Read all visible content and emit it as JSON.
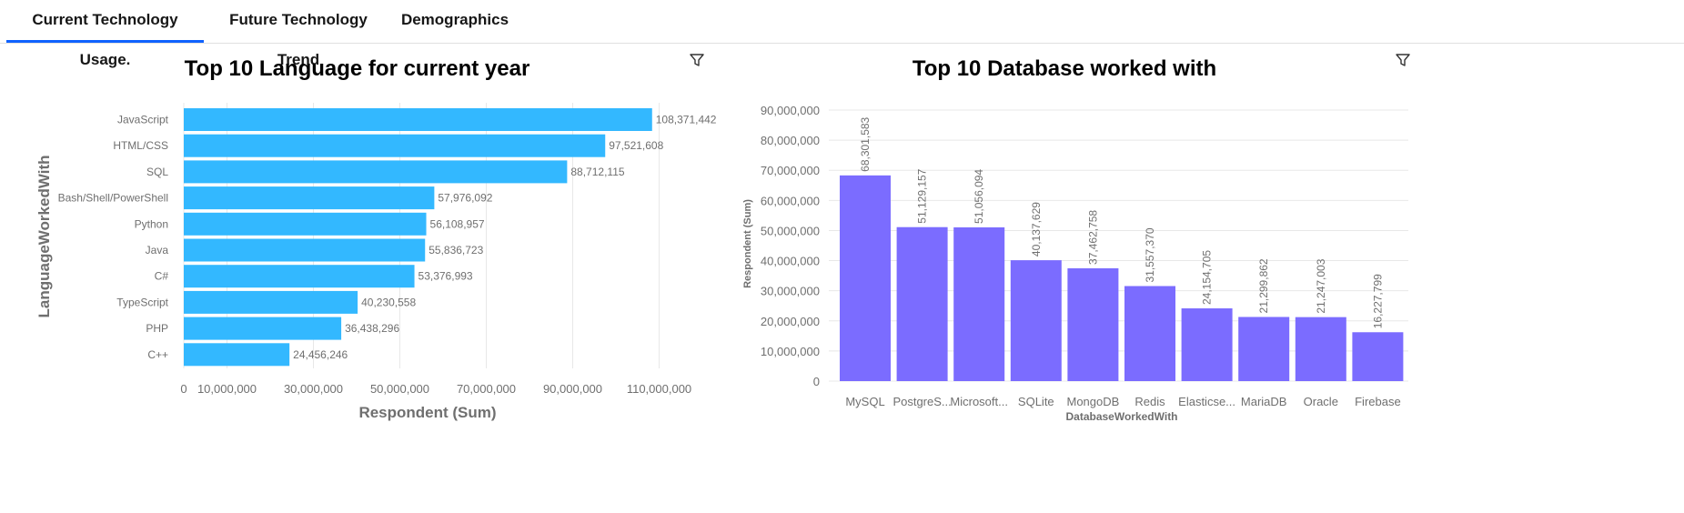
{
  "tabs": [
    {
      "label": "Current Technology Usage.",
      "active": true
    },
    {
      "label": "Future Technology Trend",
      "active": false
    },
    {
      "label": "Demographics",
      "active": false
    }
  ],
  "colors": {
    "accent": "#0f62fe",
    "lang_bar": "#33b8ff",
    "db_bar": "#7b6cff",
    "grid": "#e8e8e8",
    "tick_text": "#6f6f6f"
  },
  "icons": {
    "filter": "filter-icon"
  },
  "chart_data": [
    {
      "type": "bar",
      "orientation": "horizontal",
      "title": "Top 10 Language for current year",
      "xlabel": "Respondent (Sum)",
      "ylabel": "LanguageWorkedWith",
      "categories": [
        "JavaScript",
        "HTML/CSS",
        "SQL",
        "Bash/Shell/PowerShell",
        "Python",
        "Java",
        "C#",
        "TypeScript",
        "PHP",
        "C++"
      ],
      "values": [
        108371442,
        97521608,
        88712115,
        57976092,
        56108957,
        55836723,
        53376993,
        40230558,
        36438296,
        24456246
      ],
      "value_labels": [
        "108,371,442",
        "97,521,608",
        "88,712,115",
        "57,976,092",
        "56,108,957",
        "55,836,723",
        "53,376,993",
        "40,230,558",
        "36,438,296",
        "24,456,246"
      ],
      "xticks": [
        0,
        10000000,
        30000000,
        50000000,
        70000000,
        90000000,
        110000000
      ],
      "xtick_labels": [
        "0",
        "10,000,000",
        "30,000,000",
        "50,000,000",
        "70,000,000",
        "90,000,000",
        "110,000,000"
      ],
      "xlim": [
        0,
        120000000
      ],
      "grid": true
    },
    {
      "type": "bar",
      "orientation": "vertical",
      "title": "Top 10 Database worked with",
      "xlabel": "DatabaseWorkedWith",
      "ylabel": "Respondent (Sum)",
      "categories": [
        "MySQL",
        "PostgreS...",
        "Microsoft...",
        "SQLite",
        "MongoDB",
        "Redis",
        "Elasticse...",
        "MariaDB",
        "Oracle",
        "Firebase"
      ],
      "values": [
        68301583,
        51129157,
        51056094,
        40137629,
        37462758,
        31557370,
        24154705,
        21299862,
        21247003,
        16227799
      ],
      "value_labels": [
        "68,301,583",
        "51,129,157",
        "51,056,094",
        "40,137,629",
        "37,462,758",
        "31,557,370",
        "24,154,705",
        "21,299,862",
        "21,247,003",
        "16,227,799"
      ],
      "yticks": [
        0,
        10000000,
        20000000,
        30000000,
        40000000,
        50000000,
        60000000,
        70000000,
        80000000,
        90000000
      ],
      "ytick_labels": [
        "0",
        "10,000,000",
        "20,000,000",
        "30,000,000",
        "40,000,000",
        "50,000,000",
        "60,000,000",
        "70,000,000",
        "80,000,000",
        "90,000,000"
      ],
      "ylim": [
        0,
        90000000
      ],
      "grid": true
    }
  ]
}
